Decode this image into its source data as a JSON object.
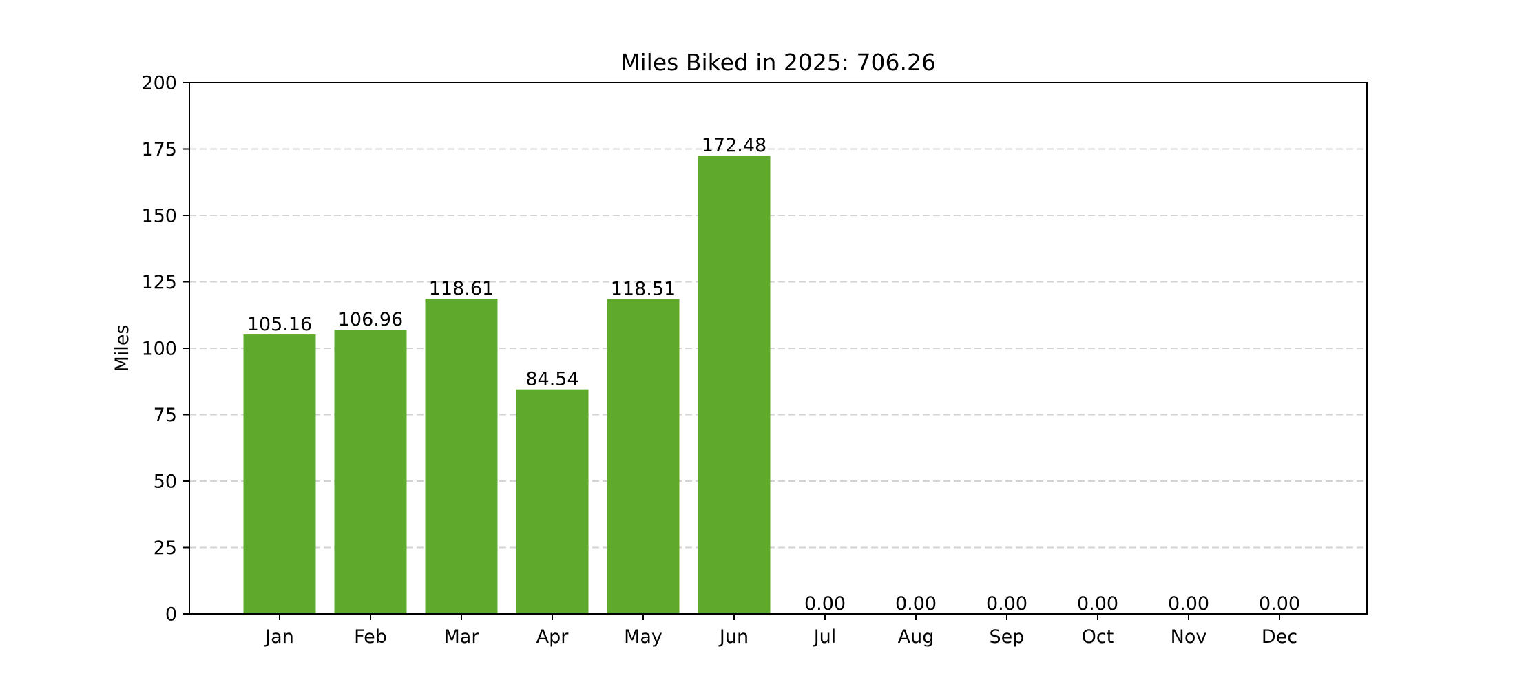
{
  "chart_data": {
    "type": "bar",
    "title": "Miles Biked in 2025: 706.26",
    "xlabel": "",
    "ylabel": "Miles",
    "categories": [
      "Jan",
      "Feb",
      "Mar",
      "Apr",
      "May",
      "Jun",
      "Jul",
      "Aug",
      "Sep",
      "Oct",
      "Nov",
      "Dec"
    ],
    "values": [
      105.16,
      106.96,
      118.61,
      84.54,
      118.51,
      172.48,
      0.0,
      0.0,
      0.0,
      0.0,
      0.0,
      0.0
    ],
    "value_labels": [
      "105.16",
      "106.96",
      "118.61",
      "84.54",
      "118.51",
      "172.48",
      "0.00",
      "0.00",
      "0.00",
      "0.00",
      "0.00",
      "0.00"
    ],
    "ylim": [
      0,
      200
    ],
    "yticks": [
      0,
      25,
      50,
      75,
      100,
      125,
      150,
      175,
      200
    ],
    "grid": {
      "y": true,
      "x": false,
      "style": "dashed"
    },
    "legend": "none",
    "colors": {
      "bar": "#5fa92c",
      "grid": "#d3d3d3",
      "axis": "#000000",
      "text": "#000000"
    }
  }
}
